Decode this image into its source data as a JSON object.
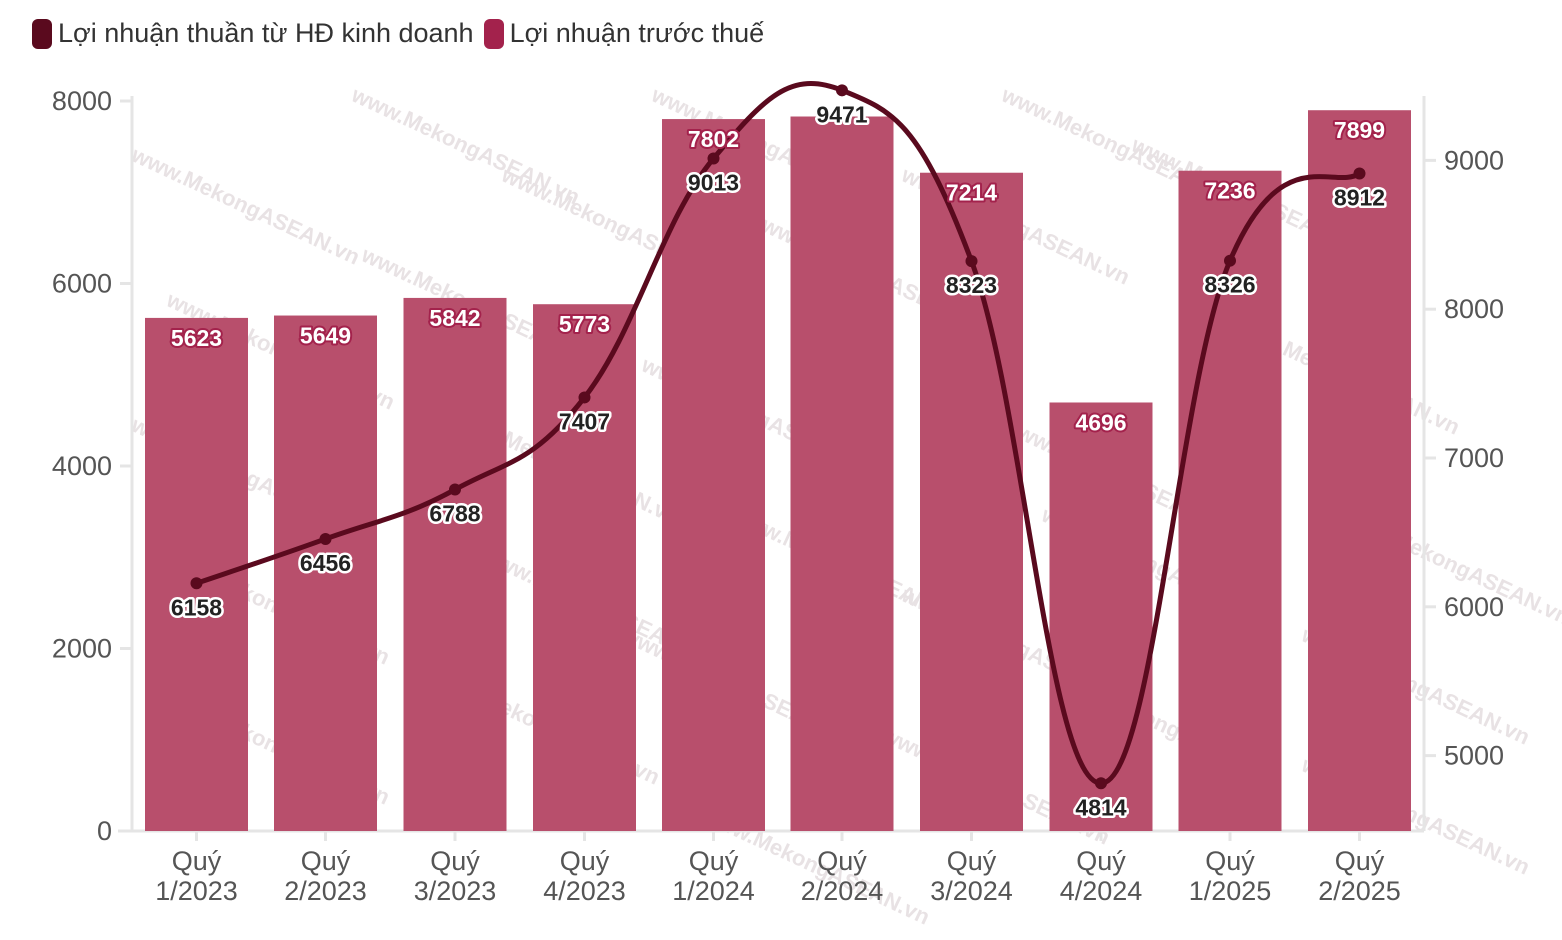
{
  "colors": {
    "bar": "#b84f6c",
    "line": "#5a0a1e",
    "legend_line": "#5a0a1e",
    "legend_bar": "#a3224c",
    "axis": "#e5e5e5",
    "tick_text": "#555555",
    "watermark": "#e8e2e4"
  },
  "watermark_text": "www.MekongASEAN.vn",
  "chart_data": {
    "type": "bar",
    "categories": [
      "Quý\n1/2023",
      "Quý\n2/2023",
      "Quý\n3/2023",
      "Quý\n4/2023",
      "Quý\n1/2024",
      "Quý\n2/2024",
      "Quý\n3/2024",
      "Quý\n4/2024",
      "Quý\n1/2025",
      "Quý\n2/2025"
    ],
    "series": [
      {
        "name": "Lợi nhuận thuần từ HĐ kinh doanh",
        "type": "line",
        "axis": "right",
        "values": [
          6158,
          6456,
          6788,
          7407,
          9013,
          9471,
          8323,
          4814,
          8326,
          8912
        ]
      },
      {
        "name": "Lợi nhuận trước thuế",
        "type": "bar",
        "axis": "left",
        "values": [
          5623,
          5649,
          5842,
          5773,
          7802,
          7830,
          7214,
          4696,
          7236,
          7899
        ]
      }
    ],
    "bar_labels": [
      "5623",
      "5649",
      "5842",
      "5773",
      "7802",
      "",
      "7214",
      "4696",
      "7236",
      "7899"
    ],
    "line_labels": [
      "6158",
      "6456",
      "6788",
      "7407",
      "9013",
      "9471",
      "8323",
      "4814",
      "8326",
      "8912"
    ],
    "y_left": {
      "min": 0,
      "max": 8000,
      "ticks": [
        0,
        2000,
        4000,
        6000,
        8000
      ]
    },
    "y_right": {
      "min": 4500,
      "max": 9500,
      "ticks": [
        5000,
        6000,
        7000,
        8000,
        9000
      ]
    },
    "legend_position": "top-left",
    "grid": false
  }
}
